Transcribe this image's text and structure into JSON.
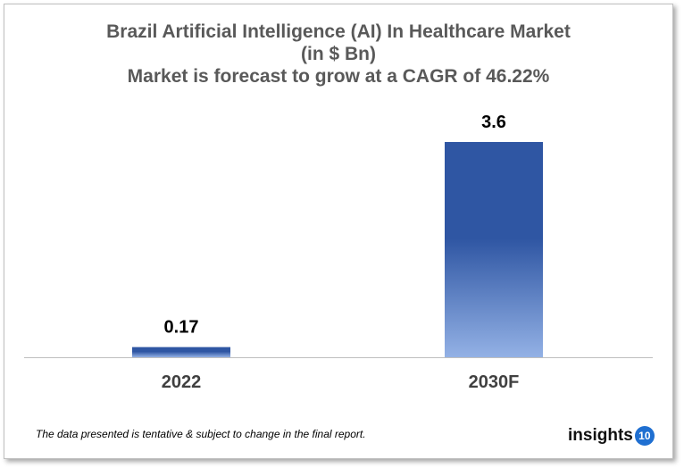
{
  "chart_data": {
    "type": "bar",
    "title_lines": [
      "Brazil Artificial Intelligence (AI) In Healthcare Market",
      "(in $ Bn)",
      "Market is forecast to grow at a CAGR of 46.22%"
    ],
    "categories": [
      "2022",
      "2030F"
    ],
    "values": [
      0.17,
      3.6
    ],
    "data_labels": [
      "0.17",
      "3.6"
    ],
    "ylim": [
      0,
      3.6
    ],
    "grid": false,
    "legend": "none",
    "colors": {
      "bar_top": "#2f56a3",
      "bar_bottom": "#93b1e5",
      "axis": "#bfbfbf",
      "label": "#000000",
      "tick_label": "#404040"
    }
  },
  "footnote": "The data presented is tentative & subject to change in the final report.",
  "logo": {
    "text": "insights",
    "badge": "10"
  }
}
